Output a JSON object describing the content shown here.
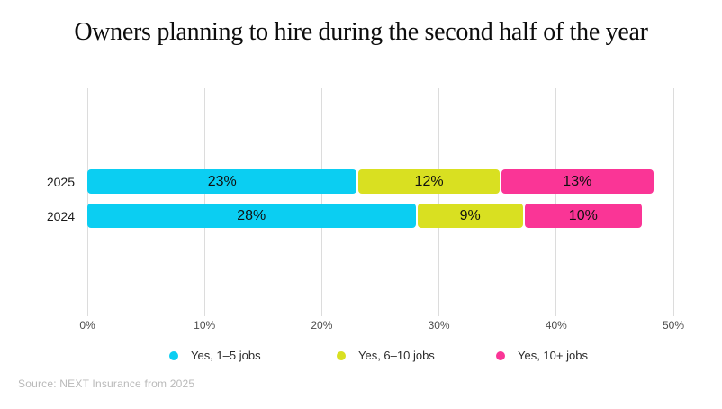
{
  "title": "Owners planning to hire during the second half of the year",
  "source": "Source: NEXT Insurance from 2025",
  "chart_data": {
    "type": "bar",
    "orientation": "horizontal",
    "stacked": true,
    "title": "Owners planning to hire during the second half of the year",
    "categories": [
      "2025",
      "2024"
    ],
    "series": [
      {
        "name": "Yes, 1–5 jobs",
        "color": "#0bcef2",
        "values": [
          23,
          28
        ],
        "labels": [
          "23%",
          "28%"
        ]
      },
      {
        "name": "Yes, 6–10 jobs",
        "color": "#d9e021",
        "values": [
          12,
          9
        ],
        "labels": [
          "12%",
          "9%"
        ]
      },
      {
        "name": "Yes, 10+ jobs",
        "color": "#fa3596",
        "values": [
          13,
          10
        ],
        "labels": [
          "13%",
          "10%"
        ]
      }
    ],
    "xlim": [
      0,
      50
    ],
    "x_ticks": [
      "0%",
      "10%",
      "20%",
      "30%",
      "40%",
      "50%"
    ],
    "x_tick_values": [
      0,
      10,
      20,
      30,
      40,
      50
    ],
    "grid": true,
    "legend_position": "bottom",
    "value_suffix": "%",
    "source_note": "Source: NEXT Insurance from 2025"
  }
}
